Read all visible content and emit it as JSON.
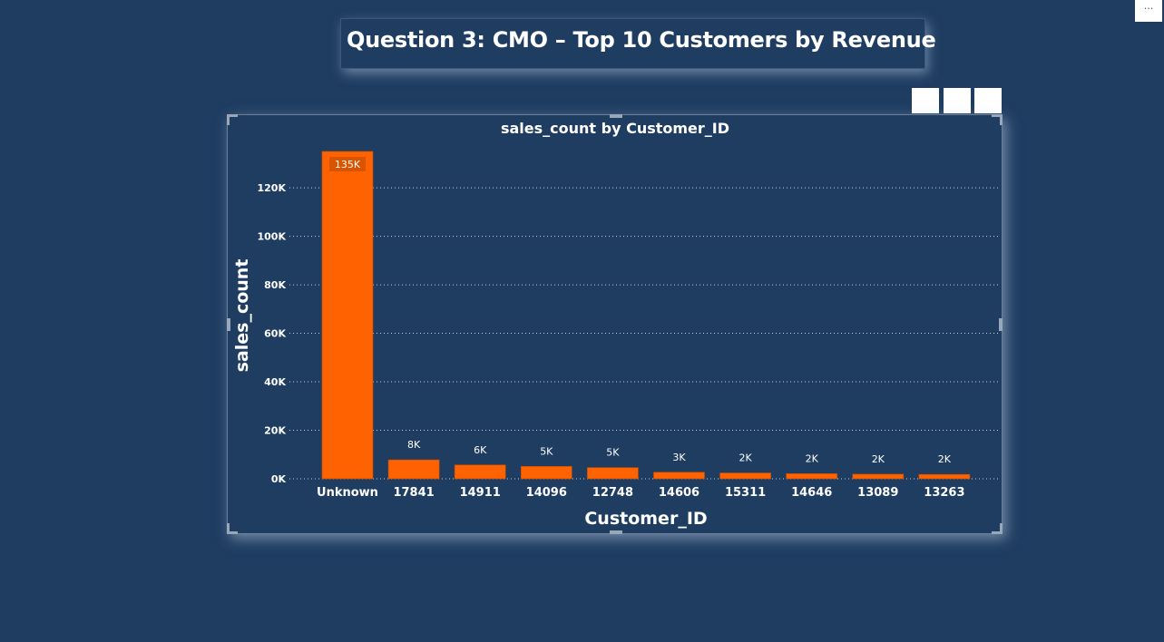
{
  "menu": {
    "label": "···"
  },
  "page": {
    "title": "Question 3: CMO – Top 10 Customers by Revenue"
  },
  "colors": {
    "background": "#1f3d61",
    "bar": "#ff6200",
    "text": "#ffffff"
  },
  "chart_data": {
    "type": "bar",
    "title": "sales_count by Customer_ID",
    "xlabel": "Customer_ID",
    "ylabel": "sales_count",
    "categories": [
      "Unknown",
      "17841",
      "14911",
      "14096",
      "12748",
      "14606",
      "15311",
      "14646",
      "13089",
      "13263"
    ],
    "values": [
      135000,
      7800,
      5700,
      5100,
      4600,
      2700,
      2400,
      2100,
      1900,
      1800
    ],
    "data_labels": [
      "135K",
      "8K",
      "6K",
      "5K",
      "5K",
      "3K",
      "2K",
      "2K",
      "2K",
      "2K"
    ],
    "ylim": [
      0,
      135000
    ],
    "yticks": [
      0,
      20000,
      40000,
      60000,
      80000,
      100000,
      120000
    ],
    "ytick_labels": [
      "0K",
      "20K",
      "40K",
      "60K",
      "80K",
      "100K",
      "120K"
    ],
    "grid": true,
    "legend": "none"
  }
}
